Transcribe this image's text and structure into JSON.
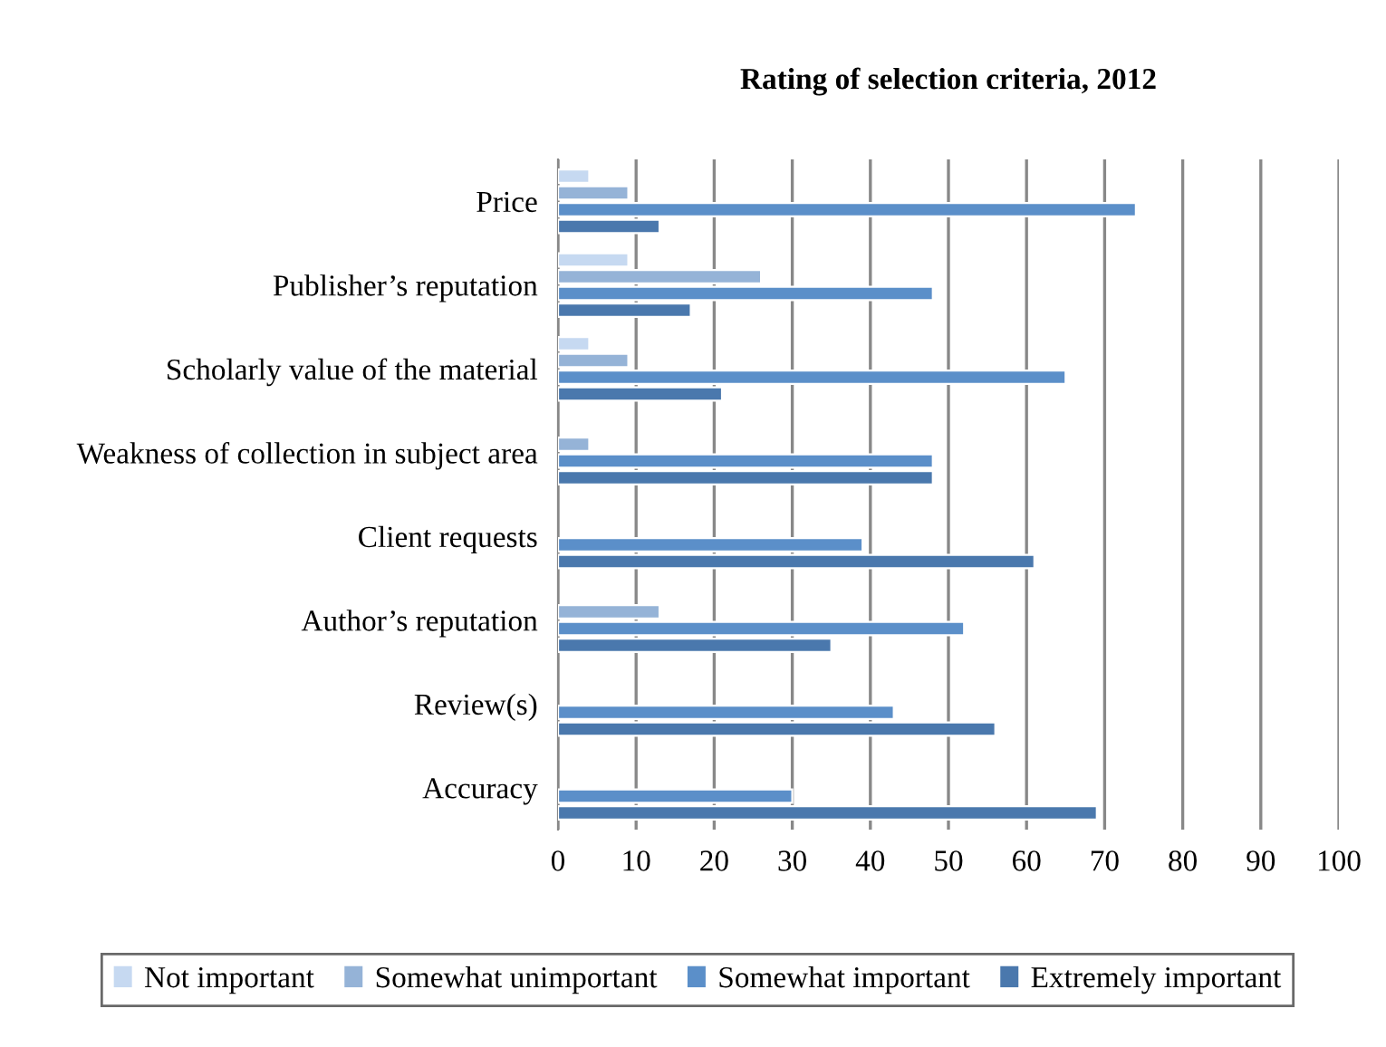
{
  "chart_data": {
    "type": "bar",
    "orientation": "horizontal",
    "title": "Rating of selection criteria, 2012",
    "categories": [
      "Price",
      "Publisher’s reputation",
      "Scholarly value of the material",
      "Weakness of collection in subject area",
      "Client requests",
      "Author’s reputation",
      "Review(s)",
      "Accuracy"
    ],
    "series": [
      {
        "name": "Not important",
        "color": "#c6d9f1",
        "values": [
          4,
          9,
          4,
          null,
          null,
          null,
          null,
          null
        ]
      },
      {
        "name": "Somewhat unimportant",
        "color": "#95b3d7",
        "values": [
          9,
          26,
          9,
          4,
          null,
          13,
          null,
          null
        ]
      },
      {
        "name": "Somewhat important",
        "color": "#5b8fc9",
        "values": [
          74,
          48,
          65,
          48,
          39,
          52,
          43,
          30
        ]
      },
      {
        "name": "Extremely important",
        "color": "#4a78ad",
        "values": [
          13,
          17,
          21,
          48,
          61,
          35,
          56,
          69
        ]
      }
    ],
    "xlim": [
      0,
      100
    ],
    "xticks": [
      0,
      10,
      20,
      30,
      40,
      50,
      60,
      70,
      80,
      90,
      100
    ],
    "grid": "x",
    "legend": "bottom"
  }
}
